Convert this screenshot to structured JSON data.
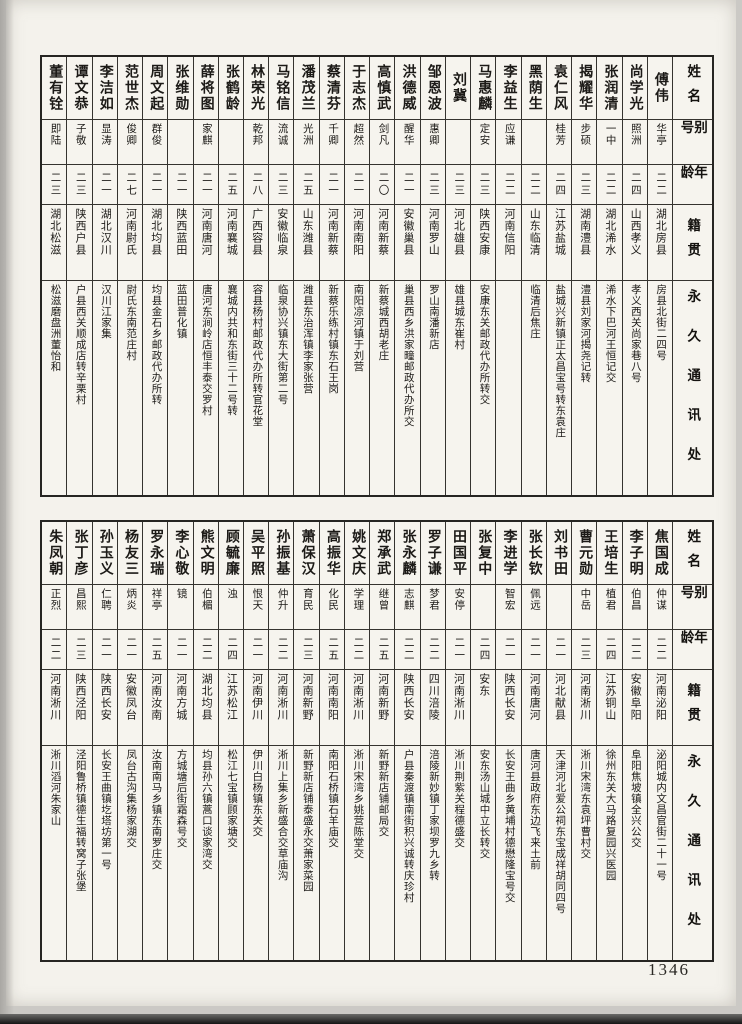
{
  "page_number": "1346",
  "headers": {
    "name": "姓名",
    "alias": "别号",
    "age": "年龄",
    "native": "籍贯",
    "address": "永久通讯处"
  },
  "tables": [
    {
      "entries": [
        {
          "name": "傅伟",
          "alias": "华亭",
          "age": "二二",
          "native": "湖北房县",
          "address": "房县北街二四号"
        },
        {
          "name": "尚学光",
          "alias": "照洲",
          "age": "二四",
          "native": "山西孝义",
          "address": "孝义西关尚家巷八号"
        },
        {
          "name": "张润清",
          "alias": "一中",
          "age": "二二",
          "native": "湖北浠水",
          "address": "浠水下巴河王恒记交"
        },
        {
          "name": "揭耀华",
          "alias": "步硕",
          "age": "二三",
          "native": "湖南澧县",
          "address": "澧县刘家河揭尧记转"
        },
        {
          "name": "袁仁风",
          "alias": "桂芳",
          "age": "二四",
          "native": "江苏盐城",
          "address": "盐城兴新镇正太昌宝号转东袁庄"
        },
        {
          "name": "黑荫生",
          "alias": "",
          "age": "二二",
          "native": "山东临清",
          "address": "临清后焦庄"
        },
        {
          "name": "李益生",
          "alias": "应谦",
          "age": "二二",
          "native": "河南信阳",
          "address": ""
        },
        {
          "name": "马惠麟",
          "alias": "定安",
          "age": "二三",
          "native": "陕西安康",
          "address": "安康东关邮政代办所转交"
        },
        {
          "name": "刘冀",
          "alias": "",
          "age": "二三",
          "native": "河北雄县",
          "address": "雄县城东崔村"
        },
        {
          "name": "邹恩波",
          "alias": "惠卿",
          "age": "二三",
          "native": "河南罗山",
          "address": "罗山南潘新店"
        },
        {
          "name": "洪德威",
          "alias": "醒华",
          "age": "二一",
          "native": "安徽巢县",
          "address": "巢县西乡洪家疃邮政代办所交"
        },
        {
          "name": "高慎武",
          "alias": "剑凡",
          "age": "二〇",
          "native": "河南新蔡",
          "address": "新蔡城西胡老庄"
        },
        {
          "name": "于志杰",
          "alias": "超然",
          "age": "二一",
          "native": "河南南阳",
          "address": "南阳凉河镇于刘营"
        },
        {
          "name": "蔡清芬",
          "alias": "千卿",
          "age": "二一",
          "native": "河南新蔡",
          "address": "新蔡乐练村镇东石王岗"
        },
        {
          "name": "潘茂兰",
          "alias": "光洲",
          "age": "二五",
          "native": "山东潍县",
          "address": "潍县东治浑镇李家张营"
        },
        {
          "name": "马铭信",
          "alias": "流诚",
          "age": "二三",
          "native": "安徽临泉",
          "address": "临泉协兴镇东大街第二号"
        },
        {
          "name": "林荣光",
          "alias": "乾邦",
          "age": "二八",
          "native": "广西容县",
          "address": "容县杨村邮政代办所转官花堂"
        },
        {
          "name": "张鹤龄",
          "alias": "",
          "age": "二五",
          "native": "河南襄城",
          "address": "襄城内共和东街三十二号转"
        },
        {
          "name": "薛将图",
          "alias": "家麒",
          "age": "二一",
          "native": "河南唐河",
          "address": "唐河东涧岭店恒丰泰交罗村"
        },
        {
          "name": "张维勋",
          "alias": "",
          "age": "二一",
          "native": "陕西蓝田",
          "address": "蓝田普化镇"
        },
        {
          "name": "周文起",
          "alias": "群俊",
          "age": "二一",
          "native": "湖北均县",
          "address": "均县金石乡邮政代办所转"
        },
        {
          "name": "范世杰",
          "alias": "俊卿",
          "age": "二七",
          "native": "河南尉氏",
          "address": "尉氏东南范庄村"
        },
        {
          "name": "李洁如",
          "alias": "显涛",
          "age": "二一",
          "native": "湖北汉川",
          "address": "汉川江家集"
        },
        {
          "name": "谭文恭",
          "alias": "子敬",
          "age": "二三",
          "native": "陕西户县",
          "address": "户县西关顺成店转辛栗村"
        },
        {
          "name": "董有铨",
          "alias": "即陆",
          "age": "二三",
          "native": "湖北松滋",
          "address": "松滋磨盘洲董怡和"
        }
      ]
    },
    {
      "entries": [
        {
          "name": "焦国成",
          "alias": "仲谋",
          "age": "二二",
          "native": "河南泌阳",
          "address": "泌阳城内文昌官街二十一号"
        },
        {
          "name": "李子明",
          "alias": "伯昌",
          "age": "二二",
          "native": "安徽阜阳",
          "address": "阜阳焦坡镇全兴公交"
        },
        {
          "name": "王培生",
          "alias": "植君",
          "age": "二四",
          "native": "江苏铜山",
          "address": "徐州东关大马路复园兴医园"
        },
        {
          "name": "曹元勋",
          "alias": "中岳",
          "age": "二三",
          "native": "河南淅川",
          "address": "淅川宋湾东袁坪曹村交"
        },
        {
          "name": "刘书田",
          "alias": "",
          "age": "二一",
          "native": "河北献县",
          "address": "天津河北爱公祠东宝成祥胡同四号"
        },
        {
          "name": "张长钦",
          "alias": "佩远",
          "age": "二一",
          "native": "河南唐河",
          "address": "唐河县政府东边飞来土前"
        },
        {
          "name": "李进学",
          "alias": "智宏",
          "age": "二一",
          "native": "陕西长安",
          "address": "长安王曲乡黄埔村德懋隆宝号交"
        },
        {
          "name": "张复中",
          "alias": "",
          "age": "二四",
          "native": "安东",
          "address": "安东汤山城中立长转交"
        },
        {
          "name": "田国平",
          "alias": "安停",
          "age": "二一",
          "native": "河南淅川",
          "address": "淅川荆紫关程德盛交"
        },
        {
          "name": "罗子谦",
          "alias": "梦君",
          "age": "二二",
          "native": "四川涪陵",
          "address": "涪陵新妙镇丁家坝罗九乡转"
        },
        {
          "name": "张永麟",
          "alias": "志麒",
          "age": "二二",
          "native": "陕西长安",
          "address": "户县秦渡镇南街积兴诚转庆珍村"
        },
        {
          "name": "郑承武",
          "alias": "继曾",
          "age": "二五",
          "native": "河南新野",
          "address": "新野新店铺邮局交"
        },
        {
          "name": "姚文庆",
          "alias": "学理",
          "age": "二二",
          "native": "河南淅川",
          "address": "淅川宋湾乡姚营陈堂交"
        },
        {
          "name": "高振华",
          "alias": "化民",
          "age": "二五",
          "native": "河南南阳",
          "address": "南阳石桥镇石羊庙交"
        },
        {
          "name": "萧保汉",
          "alias": "育民",
          "age": "二三",
          "native": "河南新野",
          "address": "新野新店铺泰盛永交萧家菜园"
        },
        {
          "name": "孙振基",
          "alias": "仲升",
          "age": "二二",
          "native": "河南淅川",
          "address": "淅川上集乡新盛合交草庙沟"
        },
        {
          "name": "吴平照",
          "alias": "恨天",
          "age": "二一",
          "native": "河南伊川",
          "address": "伊川白杨镇东关交"
        },
        {
          "name": "顾毓廉",
          "alias": "浊",
          "age": "二四",
          "native": "江苏松江",
          "address": "松江七宝镇顾家塘交"
        },
        {
          "name": "熊文明",
          "alias": "伯楣",
          "age": "二二",
          "native": "湖北均县",
          "address": "均县孙六镇蒿口谈家湾交"
        },
        {
          "name": "李心敬",
          "alias": "镜",
          "age": "二一",
          "native": "河南方城",
          "address": "方城塘后街霜森号交"
        },
        {
          "name": "罗永瑞",
          "alias": "祥亭",
          "age": "二五",
          "native": "河南汝南",
          "address": "汝南南马乡镇东南罗庄交"
        },
        {
          "name": "杨友三",
          "alias": "炳炎",
          "age": "二一",
          "native": "安徽凤台",
          "address": "凤台古沟集杨家湖交"
        },
        {
          "name": "孙玉义",
          "alias": "仁聘",
          "age": "二一",
          "native": "陕西长安",
          "address": "长安王曲镇圪塔坊第一号"
        },
        {
          "name": "张丁彦",
          "alias": "昌熙",
          "age": "二三",
          "native": "陕西泾阳",
          "address": "泾阳鲁桥镇德生福转窝子张堡"
        },
        {
          "name": "朱凤朝",
          "alias": "正烈",
          "age": "二二",
          "native": "河南淅川",
          "address": "淅川滔河朱家山"
        }
      ]
    }
  ]
}
